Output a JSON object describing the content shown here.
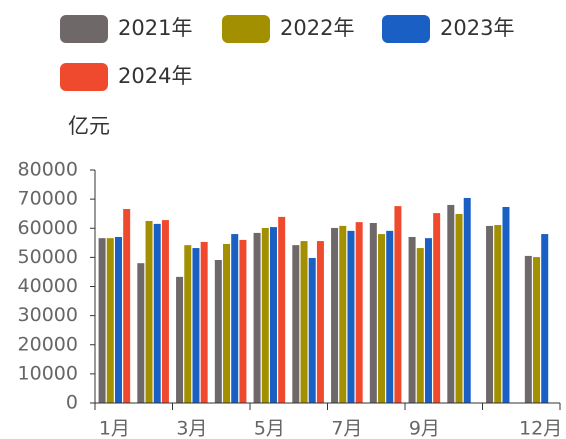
{
  "chart_data": {
    "type": "bar",
    "y_axis_label": "亿元",
    "categories": [
      "1月",
      null,
      "3月",
      null,
      "5月",
      null,
      "7月",
      null,
      "9月",
      null,
      null,
      "12月"
    ],
    "series": [
      {
        "name": "2021年",
        "color": "#6e6868",
        "values": [
          56600,
          48000,
          43300,
          49100,
          58400,
          54200,
          60100,
          61800,
          57000,
          68000,
          60800,
          50500
        ]
      },
      {
        "name": "2022年",
        "color": "#a39000",
        "values": [
          56600,
          62500,
          54200,
          54600,
          60100,
          55600,
          60800,
          58000,
          53200,
          64900,
          61100,
          50100
        ]
      },
      {
        "name": "2023年",
        "color": "#1a5fc4",
        "values": [
          57000,
          61500,
          53200,
          58000,
          60400,
          49800,
          59100,
          59100,
          56600,
          70400,
          67300,
          58000
        ]
      },
      {
        "name": "2024年",
        "color": "#f04a2e",
        "values": [
          66600,
          62800,
          55300,
          56000,
          63900,
          55600,
          62100,
          67600,
          65200,
          null,
          null,
          null
        ]
      }
    ],
    "ylim": [
      0,
      80000
    ],
    "yticks": [
      0,
      10000,
      20000,
      30000,
      40000,
      50000,
      60000,
      70000,
      80000
    ],
    "legend": "top"
  }
}
